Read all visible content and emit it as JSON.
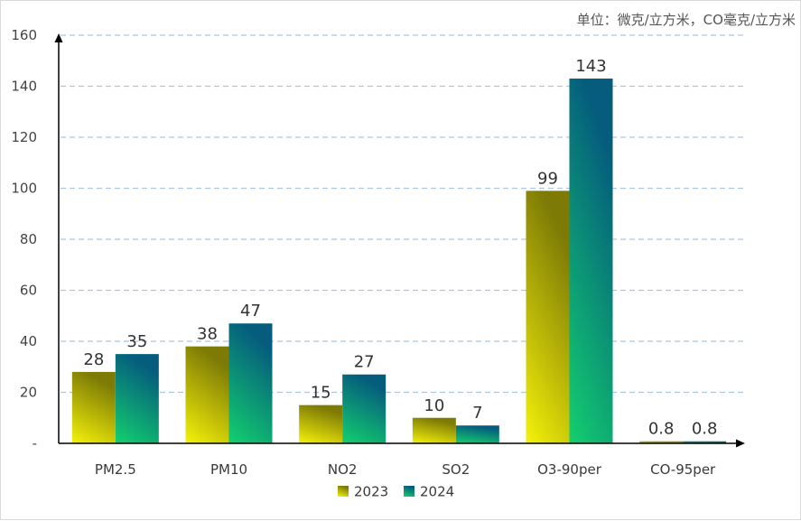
{
  "chart_data": {
    "type": "bar",
    "unit_note": "单位：微克/立方米，CO毫克/立方米",
    "categories": [
      "PM2.5",
      "PM10",
      "NO2",
      "SO2",
      "O3-90per",
      "CO-95per"
    ],
    "series": [
      {
        "name": "2023",
        "values": [
          28,
          38,
          15,
          10,
          99,
          0.8
        ],
        "labels": [
          "28",
          "38",
          "15",
          "10",
          "99",
          "0.8"
        ]
      },
      {
        "name": "2024",
        "values": [
          35,
          47,
          27,
          7,
          143,
          0.8
        ],
        "labels": [
          "35",
          "47",
          "27",
          "7",
          "143",
          "0.8"
        ]
      }
    ],
    "ylim": [
      0,
      160
    ],
    "y_ticks": [
      0,
      20,
      40,
      60,
      80,
      100,
      120,
      140,
      160
    ],
    "y_tick_labels": [
      "-",
      "20",
      "40",
      "60",
      "80",
      "100",
      "120",
      "140",
      "160"
    ],
    "grid": true,
    "legend_position": "bottom-center",
    "colors": {
      "series_2023": [
        "#f5f20a",
        "#7d7a06"
      ],
      "series_2024": [
        "#13d06e",
        "#055c7d"
      ],
      "grid": "#a9c7e2",
      "axis": "#000000"
    }
  }
}
